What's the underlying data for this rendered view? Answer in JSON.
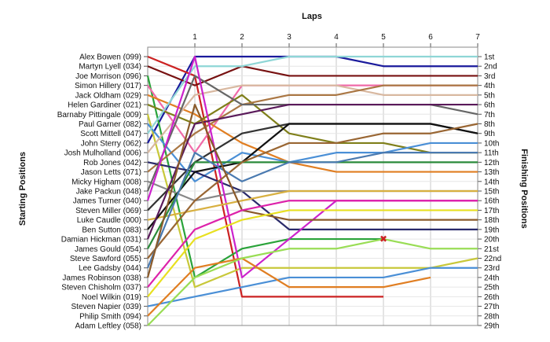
{
  "chart_data": {
    "type": "line",
    "title": "",
    "x_axis_title": "Laps",
    "y_left_title": "Starting Positions",
    "y_right_title": "Finishing Positions",
    "laps": [
      1,
      2,
      3,
      4,
      5,
      6,
      7
    ],
    "x_range": [
      0,
      7
    ],
    "drivers": [
      "Alex Bowen (099)",
      "Martyn Lyell (034)",
      "Joe Morrison (096)",
      "Simon Hillery (017)",
      "Jack Oldham (029)",
      "Helen Gardiner (021)",
      "Barnaby Pittingale (009)",
      "Paul Garner (082)",
      "Scott Mittell (047)",
      "John Sterry (062)",
      "Josh Mulholland (006)",
      "Rob Jones (042)",
      "Jason Letts (071)",
      "Micky Higham (008)",
      "Jake Packun (048)",
      "James Turner (040)",
      "Steven Miller (069)",
      "Luke Caudle (000)",
      "Ben Sutton (083)",
      "Damian Hickman (031)",
      "James Gould (054)",
      "Steve Sawford (055)",
      "Lee Gadsby (044)",
      "James Robinson (038)",
      "Steven Chisholm (037)",
      "Noel Wilkin (019)",
      "Steven Napier (039)",
      "Philip Smith (094)",
      "Adam Leftley (058)"
    ],
    "finishing_positions": [
      "1st",
      "2nd",
      "3rd",
      "4th",
      "5th",
      "6th",
      "7th",
      "8th",
      "9th",
      "10th",
      "11th",
      "12th",
      "13th",
      "14th",
      "15th",
      "16th",
      "17th",
      "18th",
      "19th",
      "20th",
      "21st",
      "22nd",
      "23rd",
      "24th",
      "25th",
      "26th",
      "27th",
      "28th",
      "29th"
    ],
    "series": [
      {
        "color": "#1a1a9c",
        "positions": [
          10,
          1,
          1,
          1,
          1,
          2,
          2,
          2
        ]
      },
      {
        "color": "#cc2222",
        "positions": [
          1,
          3,
          26,
          26,
          26,
          26
        ]
      },
      {
        "color": "#771111",
        "positions": [
          2,
          4,
          2,
          3,
          3,
          3,
          3,
          3
        ]
      },
      {
        "color": "#2aa33a",
        "positions": [
          3,
          24,
          21,
          20,
          20,
          20
        ]
      },
      {
        "color": "#f06aa8",
        "positions": [
          4,
          11,
          4,
          4,
          4,
          4,
          4,
          4
        ]
      },
      {
        "color": "#e07e22",
        "positions": [
          5,
          7,
          10,
          12,
          13,
          13,
          13,
          13
        ]
      },
      {
        "color": "#7f7f1a",
        "positions": [
          6,
          8,
          5,
          9,
          10,
          10,
          11,
          11
        ]
      },
      {
        "color": "#c8c83a",
        "positions": [
          7,
          25,
          23,
          23,
          23,
          23,
          23,
          22
        ]
      },
      {
        "color": "#4a8fd6",
        "positions": [
          8,
          14,
          11,
          12,
          11,
          11,
          10,
          10
        ]
      },
      {
        "color": "#8fd6d6",
        "positions": [
          9,
          2,
          2,
          1,
          1,
          1,
          1,
          1
        ]
      },
      {
        "color": "#d8b8a0",
        "positions": [
          11,
          5,
          4,
          4,
          4,
          5,
          5,
          5
        ]
      },
      {
        "color": "#aa7744",
        "positions": [
          13,
          9,
          6,
          5,
          5,
          4,
          4,
          4
        ]
      },
      {
        "color": "#2a2a6a",
        "positions": [
          12,
          13,
          15,
          19,
          19,
          19,
          19,
          19
        ]
      },
      {
        "color": "#888888",
        "positions": [
          14,
          16,
          15,
          15,
          15,
          15,
          15,
          15
        ]
      },
      {
        "color": "#666666",
        "positions": [
          15,
          3,
          6,
          6,
          6,
          6,
          6,
          7
        ]
      },
      {
        "color": "#cc22cc",
        "positions": [
          16,
          1,
          24,
          20,
          16,
          16,
          16,
          16
        ]
      },
      {
        "color": "#333333",
        "positions": [
          17,
          12,
          9,
          8,
          8,
          8,
          8,
          9
        ]
      },
      {
        "color": "#d8b040",
        "positions": [
          18,
          17,
          16,
          15,
          15,
          15,
          15,
          15
        ]
      },
      {
        "color": "#111111",
        "positions": [
          19,
          13,
          12,
          8,
          8,
          8,
          8,
          9
        ]
      },
      {
        "color": "#5a1a5a",
        "positions": [
          20,
          8,
          7,
          6,
          6,
          6,
          6,
          6
        ]
      },
      {
        "color": "#2a8a3a",
        "positions": [
          21,
          12,
          12,
          12,
          12,
          12,
          12,
          12
        ]
      },
      {
        "color": "#996633",
        "positions": [
          22,
          16,
          12,
          10,
          10,
          9,
          9,
          8
        ]
      },
      {
        "color": "#4a7ab0",
        "positions": [
          23,
          11,
          14,
          12,
          12,
          11,
          11,
          11
        ]
      },
      {
        "color": "#8a5a2a",
        "positions": [
          24,
          6,
          17,
          18,
          18,
          18,
          18,
          18
        ]
      },
      {
        "color": "#dd22aa",
        "positions": [
          25,
          19,
          17,
          16,
          16,
          16,
          16,
          16
        ]
      },
      {
        "color": "#e8e020",
        "positions": [
          26,
          20,
          18,
          17,
          17,
          17,
          17,
          17
        ]
      },
      {
        "color": "#4a8fd6",
        "positions": [
          27,
          26,
          25,
          24,
          24,
          24,
          23,
          23
        ]
      },
      {
        "color": "#e07e22",
        "positions": [
          28,
          23,
          22,
          25,
          25,
          25,
          24
        ]
      },
      {
        "color": "#99dd55",
        "positions": [
          29,
          24,
          22,
          21,
          21,
          20,
          21,
          21
        ]
      }
    ],
    "retirement_marker": {
      "lap": 5,
      "position": 20,
      "symbol": "✖",
      "color": "#cc2222"
    },
    "grid": true
  }
}
